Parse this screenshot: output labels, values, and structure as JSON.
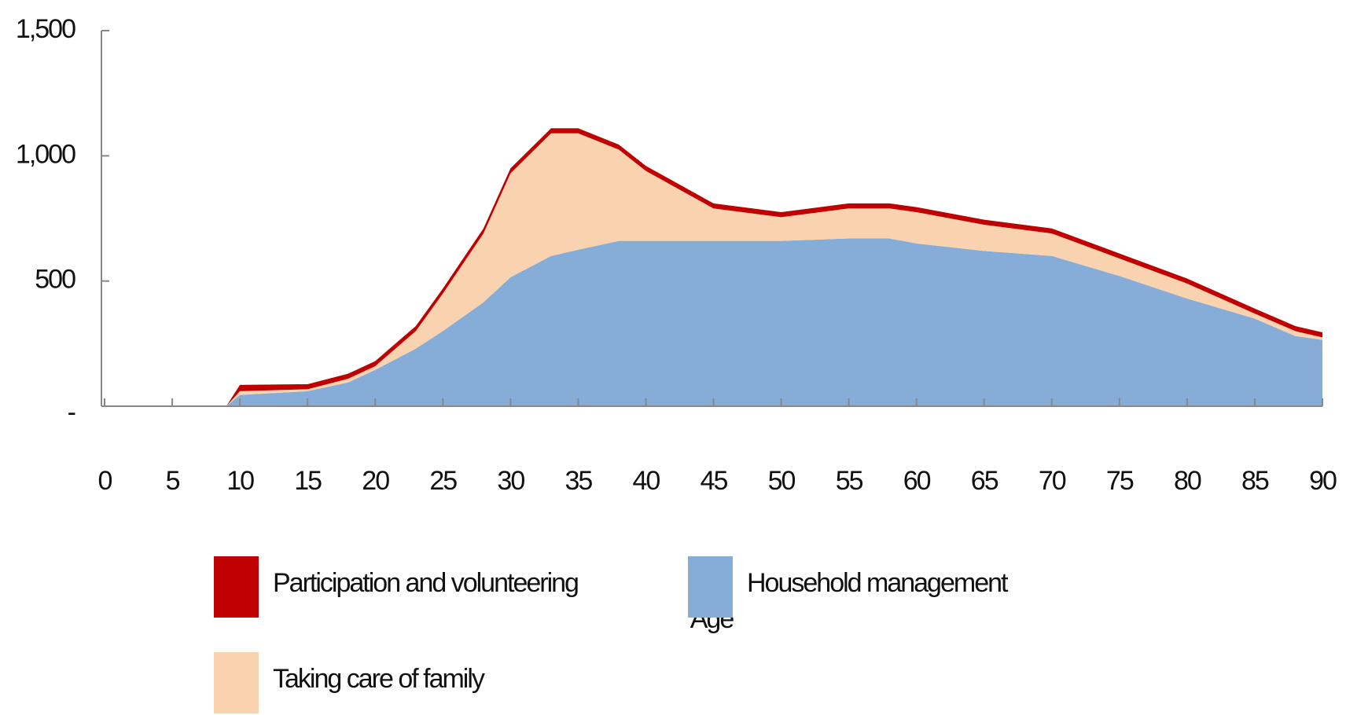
{
  "chart_data": {
    "type": "stacked_area",
    "x": [
      0,
      9,
      10,
      15,
      18,
      20,
      23,
      25,
      28,
      30,
      33,
      35,
      38,
      40,
      45,
      50,
      55,
      58,
      60,
      65,
      70,
      75,
      80,
      85,
      88,
      90
    ],
    "series": [
      {
        "name": "Household management",
        "color": "#86acd8",
        "values": [
          0,
          0,
          45,
          60,
          95,
          145,
          230,
          300,
          415,
          515,
          600,
          625,
          660,
          660,
          660,
          660,
          670,
          670,
          650,
          620,
          600,
          520,
          430,
          350,
          280,
          265
        ]
      },
      {
        "name": "Taking care of family",
        "color": "#f9d2b0",
        "values": [
          0,
          0,
          15,
          8,
          15,
          15,
          70,
          150,
          275,
          415,
          490,
          465,
          365,
          280,
          130,
          95,
          120,
          120,
          125,
          105,
          90,
          70,
          60,
          20,
          20,
          10
        ]
      },
      {
        "name": "Participation and volunteering",
        "color": "#c00000",
        "values": [
          0,
          0,
          25,
          20,
          20,
          20,
          20,
          20,
          20,
          20,
          20,
          20,
          20,
          20,
          20,
          20,
          20,
          20,
          20,
          20,
          20,
          20,
          20,
          20,
          20,
          20
        ]
      }
    ],
    "xlabel": "Age",
    "xlim": [
      0,
      90
    ],
    "xticks": [
      0,
      5,
      10,
      15,
      20,
      25,
      30,
      35,
      40,
      45,
      50,
      55,
      60,
      65,
      70,
      75,
      80,
      85,
      90
    ],
    "ylim": [
      0,
      1500
    ],
    "yticks": [
      {
        "value": 0,
        "label": "-"
      },
      500,
      {
        "value": 1000,
        "label": "1,000"
      },
      {
        "value": 1500,
        "label": "1,500"
      }
    ],
    "grid": false
  }
}
